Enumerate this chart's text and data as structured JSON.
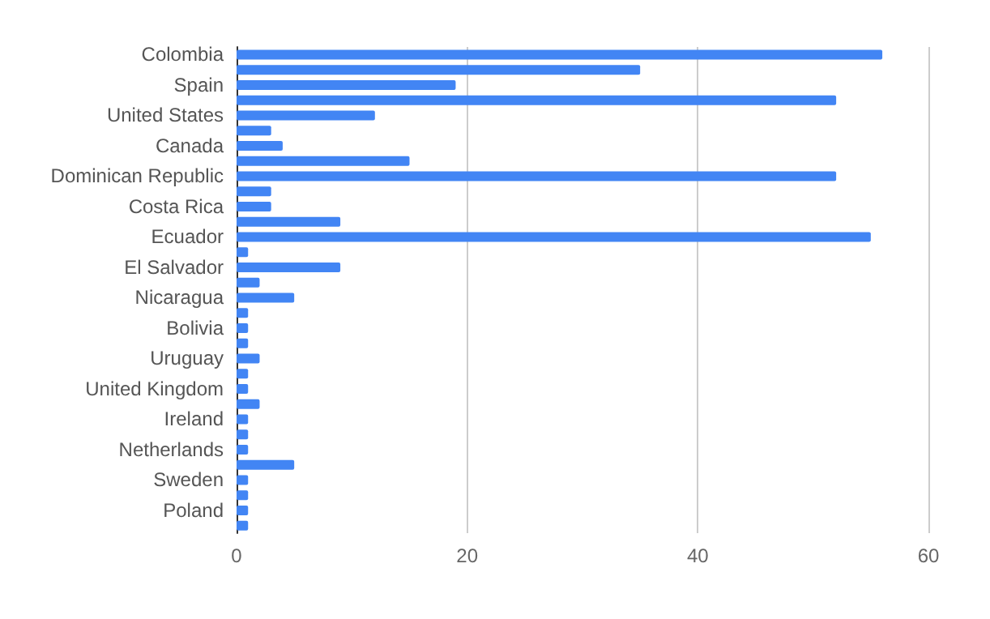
{
  "chart_data": {
    "type": "bar",
    "orientation": "horizontal",
    "categories": [
      "Colombia",
      null,
      "Spain",
      null,
      "United States",
      null,
      "Canada",
      null,
      "Dominican Republic",
      null,
      "Costa Rica",
      null,
      "Ecuador",
      null,
      "El Salvador",
      null,
      "Nicaragua",
      null,
      "Bolivia",
      null,
      "Uruguay",
      null,
      "United Kingdom",
      null,
      "Ireland",
      null,
      "Netherlands",
      null,
      "Sweden",
      null,
      "Poland",
      null
    ],
    "values": [
      56,
      35,
      19,
      52,
      12,
      3,
      4,
      15,
      52,
      3,
      3,
      9,
      55,
      1,
      9,
      2,
      5,
      1,
      1,
      1,
      2,
      1,
      1,
      2,
      1,
      1,
      1,
      5,
      1,
      1,
      1,
      1
    ],
    "color": "#4285f4",
    "xlim": [
      0,
      60
    ],
    "xticks": [
      0,
      20,
      40,
      60
    ],
    "grid": "x"
  }
}
